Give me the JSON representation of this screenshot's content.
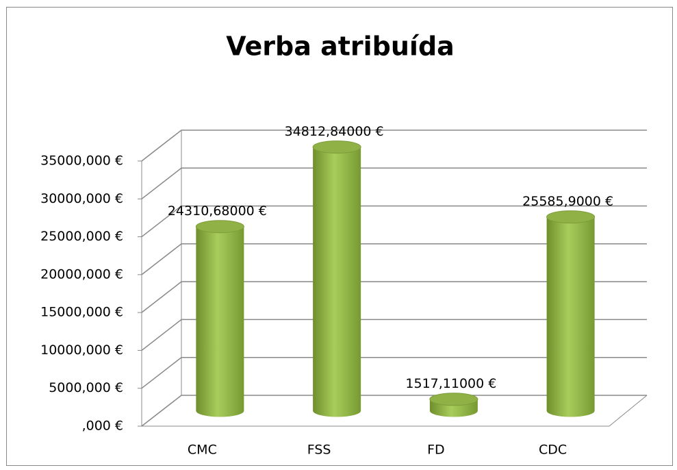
{
  "chart_data": {
    "type": "bar3d",
    "title": "Verba atribuída",
    "categories": [
      "CMC",
      "FSS",
      "FD",
      "CDC"
    ],
    "values": [
      24310.68,
      34812.84,
      1517.11,
      25585.9
    ],
    "value_labels": [
      "24310,68000 €",
      "34812,84000 €",
      "1517,11000 €",
      "25585,9000 €"
    ],
    "color": "#9bbb59",
    "ylim": [
      0,
      35000
    ],
    "yticks": [
      {
        "value": 0,
        "label": ",000 €"
      },
      {
        "value": 5000,
        "label": "5000,000 €"
      },
      {
        "value": 10000,
        "label": "10000,000 €"
      },
      {
        "value": 15000,
        "label": "15000,000 €"
      },
      {
        "value": 20000,
        "label": "20000,000 €"
      },
      {
        "value": 25000,
        "label": "25000,000 €"
      },
      {
        "value": 30000,
        "label": "30000,000 €"
      },
      {
        "value": 35000,
        "label": "35000,000 €"
      }
    ],
    "grid": true
  }
}
